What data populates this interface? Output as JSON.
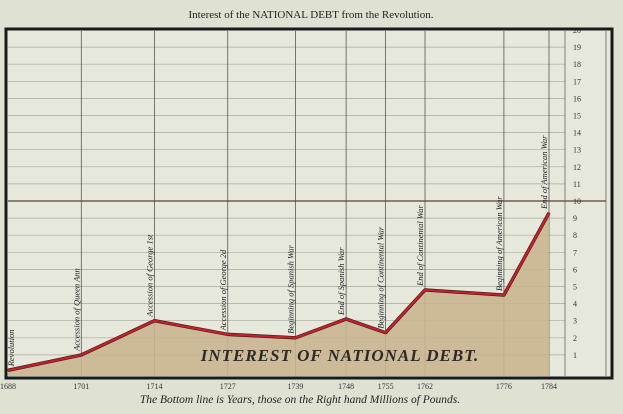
{
  "chart_data": {
    "type": "area",
    "title": "Interest of the NATIONAL DEBT from the Revolution.",
    "caption": "The Bottom line is Years, those on the Right hand Millions of Pounds.",
    "area_label": "INTEREST OF NATIONAL DEBT.",
    "x": [
      1688,
      1701,
      1714,
      1727,
      1739,
      1748,
      1755,
      1762,
      1776,
      1784
    ],
    "x_tick_labels": [
      "1688",
      "1701",
      "1714",
      "1727",
      "1739",
      "1748",
      "1755",
      "1762",
      "1776",
      "1784"
    ],
    "values": [
      0.1,
      1.0,
      3.0,
      2.2,
      2.0,
      3.1,
      2.3,
      4.8,
      4.5,
      9.3
    ],
    "events": [
      "Revolution",
      "Accession of Queen Ann",
      "Accession of George 1st",
      "Accession of George 2d",
      "Beginning of Spanish War",
      "End of Spanish War",
      "Beginning of Continental War",
      "End of Continental War",
      "Beginning of American War",
      "End of American War"
    ],
    "y_ticks": [
      "1",
      "2",
      "3",
      "4",
      "5",
      "6",
      "7",
      "8",
      "9",
      "10",
      "11",
      "12",
      "13",
      "14",
      "15",
      "16",
      "17",
      "18",
      "19",
      "20"
    ],
    "xlim": [
      1688,
      1784
    ],
    "ylim": [
      0,
      20
    ],
    "y_axis_side": "right",
    "grid": true,
    "colors": {
      "line": "#c8202a",
      "fill": "#c9b590",
      "background": "#e6e8dc"
    }
  }
}
